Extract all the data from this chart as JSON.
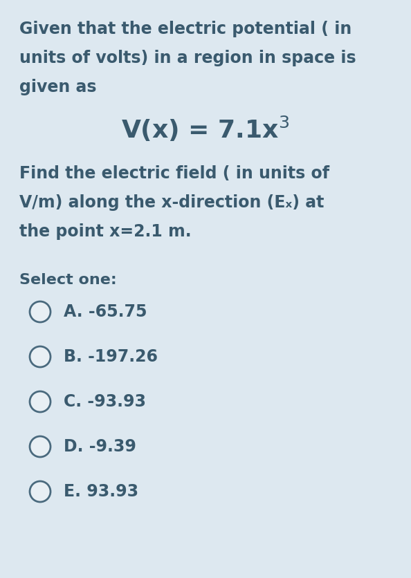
{
  "background_color": "#dde8f0",
  "text_color": "#3a5a6e",
  "circle_fill": "#e8eff4",
  "circle_edge": "#4a6a7e",
  "title_lines": [
    "Given that the electric potential ( in",
    "units of volts) in a region in space is",
    "given as"
  ],
  "body_lines_1": [
    "Find the electric field ( in units of",
    "V/m) along the x-direction (Eₓ) at",
    "the point x=2.1 m."
  ],
  "select_one": "Select one:",
  "options": [
    "A. -65.75",
    "B. -197.26",
    "C. -93.93",
    "D. -9.39",
    "E. 93.93"
  ],
  "figsize": [
    5.94,
    8.36
  ],
  "dpi": 100
}
